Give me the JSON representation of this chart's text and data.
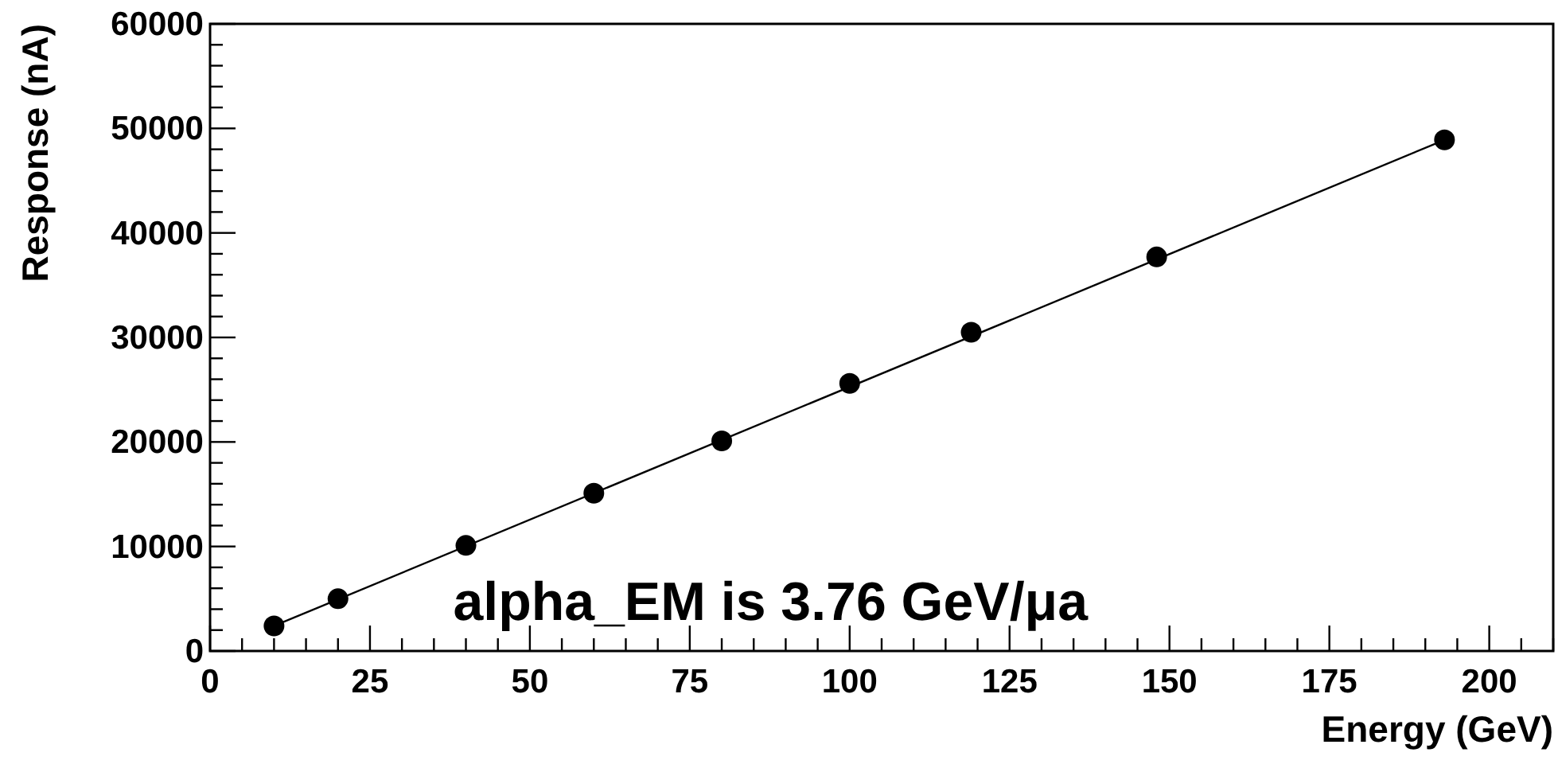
{
  "chart_data": {
    "type": "scatter",
    "xlabel": "Energy (GeV)",
    "ylabel": "Response (nA)",
    "annotations": [
      "alpha_EM is 3.76 GeV/μa"
    ],
    "series": [
      {
        "color": "#000000",
        "marker": "circle",
        "x": [
          10,
          20,
          40,
          60,
          80,
          100,
          119,
          148,
          193
        ],
        "values": [
          2400,
          5000,
          10100,
          15100,
          20100,
          25600,
          30500,
          37700,
          48900
        ]
      },
      {
        "type": "line",
        "color": "#000000",
        "marker": "none",
        "line_style": "solid",
        "x": [
          10,
          193
        ],
        "values": [
          2400,
          48900
        ]
      }
    ],
    "xlim": [
      0,
      210
    ],
    "xticks": [
      0,
      25,
      50,
      75,
      100,
      125,
      150,
      175,
      200
    ],
    "ylim": [
      0,
      60000
    ],
    "yticks": [
      0,
      10000,
      20000,
      30000,
      40000,
      50000,
      60000
    ],
    "grid": false
  }
}
